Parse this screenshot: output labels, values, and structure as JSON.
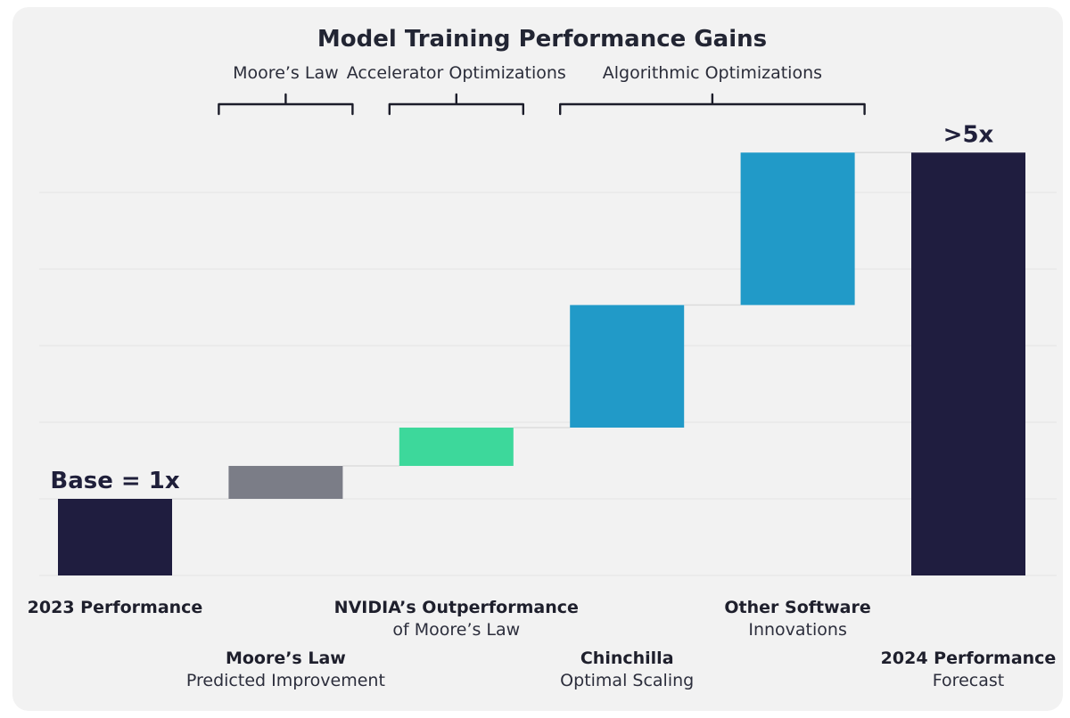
{
  "chart_data": {
    "type": "waterfall",
    "title": "Model Training Performance Gains",
    "ylim": [
      0,
      5.5
    ],
    "grid": true,
    "colors": {
      "total": "#1f1d3f",
      "moores_law": "#7b7d87",
      "nvidia": "#3dd89b",
      "algorithmic": "#219ac8"
    },
    "bars": [
      {
        "id": "base",
        "kind": "total",
        "color_key": "total",
        "start": 0,
        "end": 1.0,
        "label_line1": "2023 Performance",
        "label_line2": "",
        "value_label": "Base = 1x"
      },
      {
        "id": "moore",
        "kind": "delta",
        "color_key": "moores_law",
        "start": 1.0,
        "end": 1.43,
        "label_line1": "Moore’s Law",
        "label_line2": "Predicted Improvement",
        "value_label": ""
      },
      {
        "id": "nvidia",
        "kind": "delta",
        "color_key": "nvidia",
        "start": 1.43,
        "end": 1.93,
        "label_line1": "NVIDIA’s Outperformance",
        "label_line2": "of Moore’s Law",
        "value_label": ""
      },
      {
        "id": "chinchilla",
        "kind": "delta",
        "color_key": "algorithmic",
        "start": 1.93,
        "end": 3.53,
        "label_line1": "Chinchilla",
        "label_line2": "Optimal Scaling",
        "value_label": ""
      },
      {
        "id": "other",
        "kind": "delta",
        "color_key": "algorithmic",
        "start": 3.53,
        "end": 5.52,
        "label_line1": "Other Software",
        "label_line2": "Innovations",
        "value_label": ""
      },
      {
        "id": "total2024",
        "kind": "total",
        "color_key": "total",
        "start": 0,
        "end": 5.52,
        "label_line1": "2024 Performance",
        "label_line2": "Forecast",
        "value_label": ">5x"
      }
    ],
    "groups": [
      {
        "label": "Moore’s Law",
        "from": 1,
        "to": 1
      },
      {
        "label": "Accelerator Optimizations",
        "from": 2,
        "to": 2
      },
      {
        "label": "Algorithmic Optimizations",
        "from": 3,
        "to": 4
      }
    ]
  }
}
